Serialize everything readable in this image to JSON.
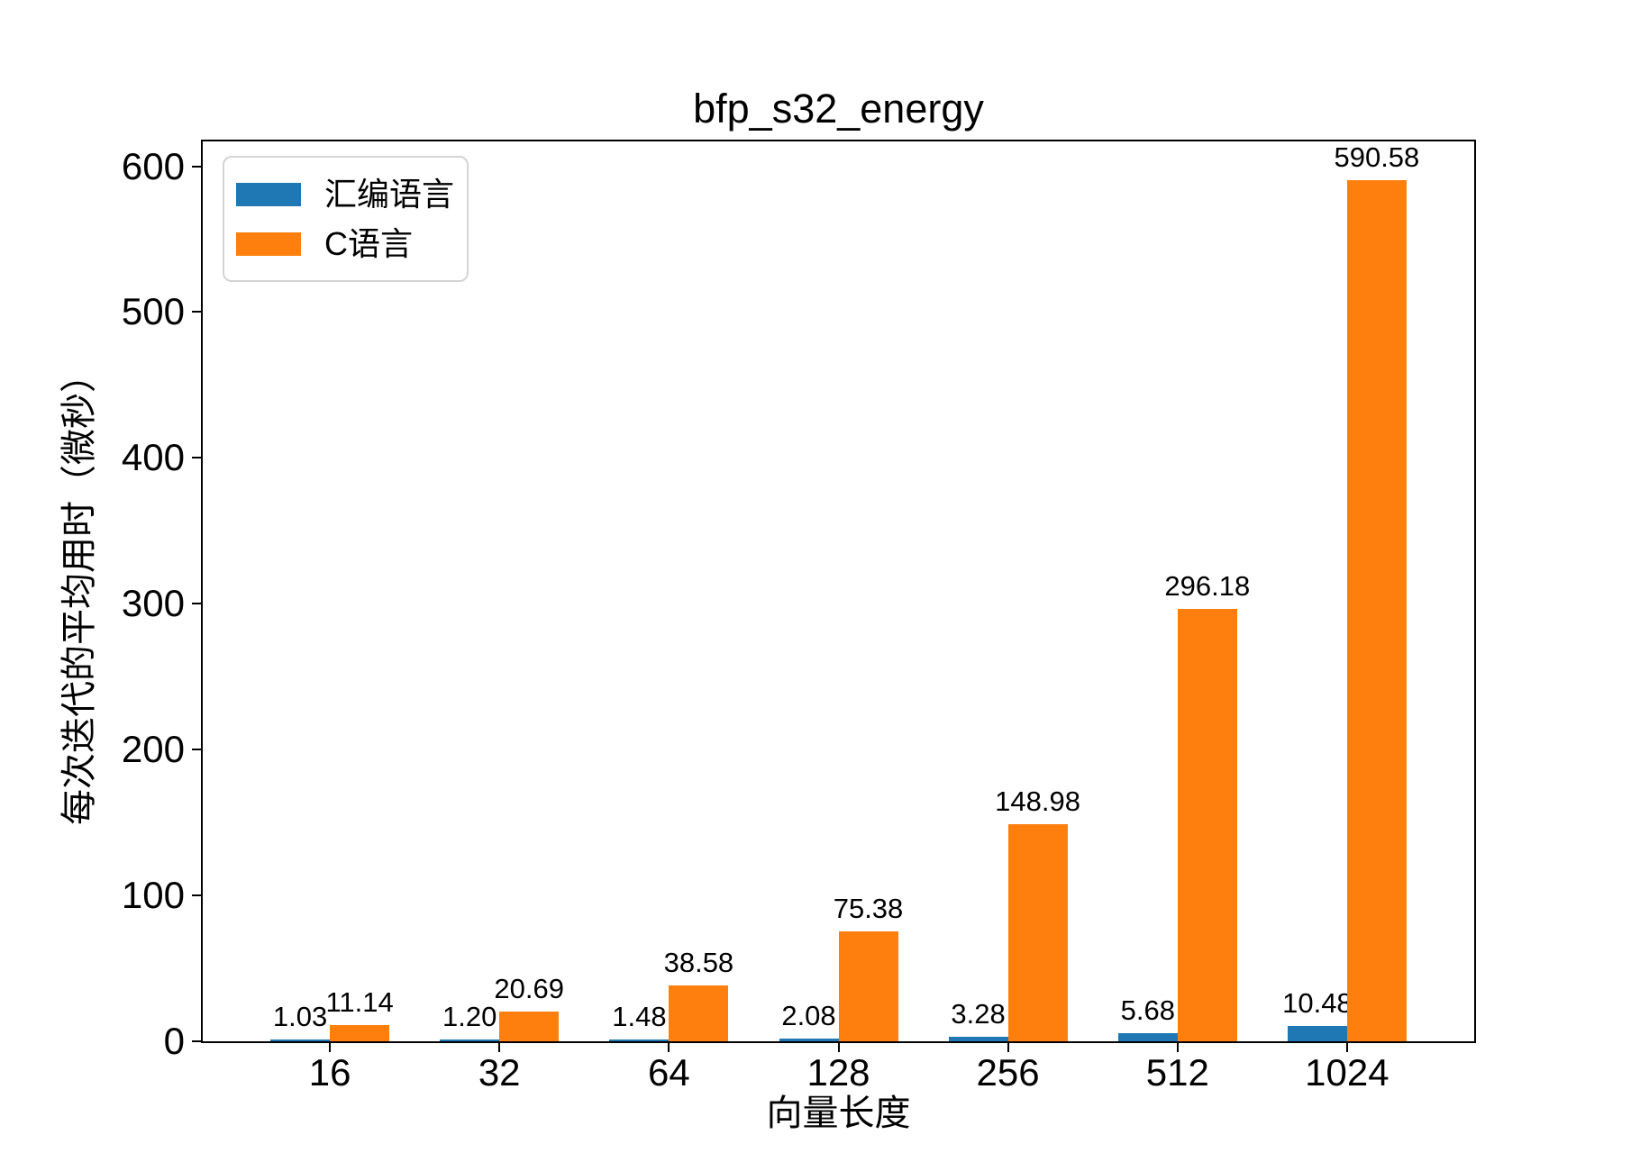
{
  "chart_data": {
    "type": "bar",
    "title": "bfp_s32_energy",
    "xlabel": "向量长度",
    "ylabel": "每次迭代的平均用时（微秒）",
    "categories": [
      "16",
      "32",
      "64",
      "128",
      "256",
      "512",
      "1024"
    ],
    "series": [
      {
        "name": "汇编语言",
        "color": "#1f77b4",
        "values": [
          1.03,
          1.2,
          1.48,
          2.08,
          3.28,
          5.68,
          10.48
        ]
      },
      {
        "name": "C语言",
        "color": "#ff7f0e",
        "values": [
          11.14,
          20.69,
          38.58,
          75.38,
          148.98,
          296.18,
          590.58
        ]
      }
    ],
    "yticks": [
      0,
      100,
      200,
      300,
      400,
      500,
      600
    ],
    "ylim": [
      0,
      617
    ],
    "grid": false,
    "legend_position": "upper-left",
    "value_labels": true,
    "value_label_decimals": 2,
    "background_color": "#ffffff",
    "spine_color": "#000000"
  }
}
